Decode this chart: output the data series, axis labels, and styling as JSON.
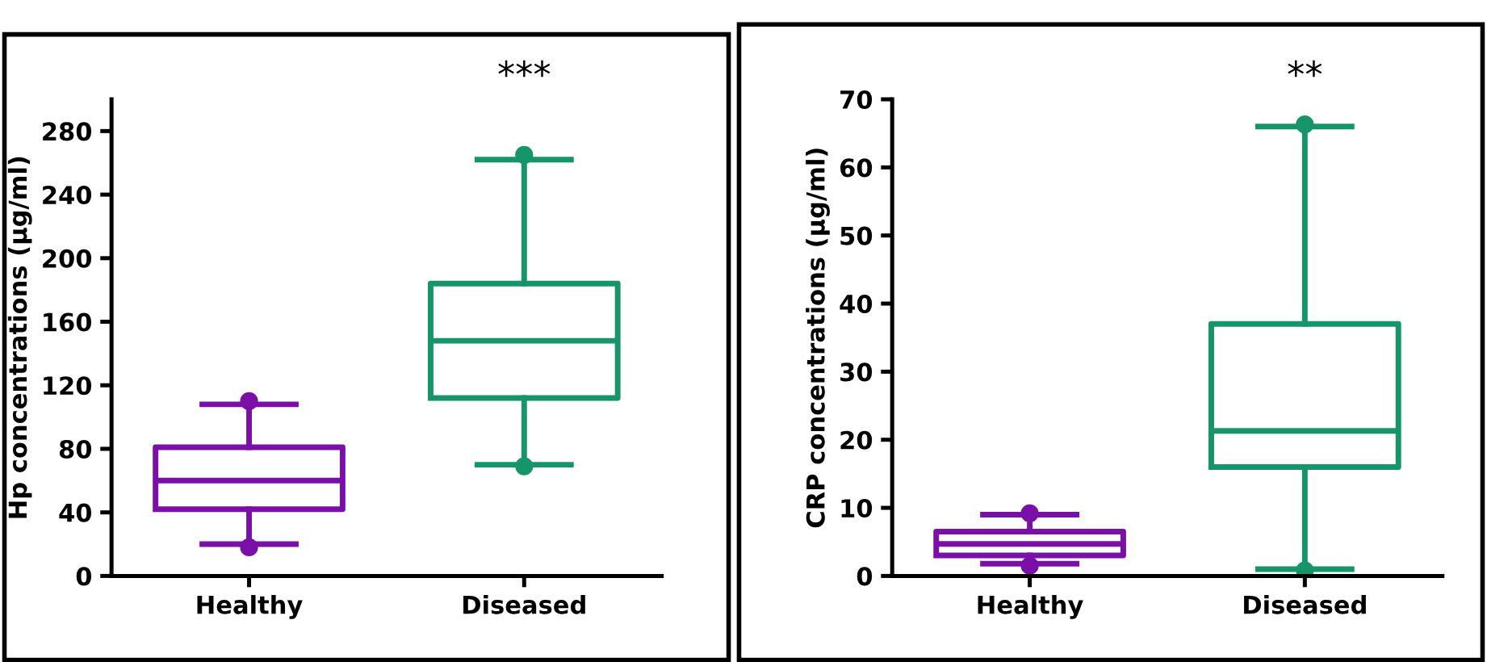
{
  "chart_data": [
    {
      "type": "box",
      "ylabel": "Hp concentrations (µg/ml)",
      "categories": [
        "Healthy",
        "Diseased"
      ],
      "colors": [
        "#7a10a8",
        "#16956a"
      ],
      "marker": "circle",
      "ylim": [
        0,
        300
      ],
      "yticks": [
        0,
        40,
        80,
        120,
        160,
        200,
        240,
        280
      ],
      "grid": false,
      "annotations": [
        "***"
      ],
      "boxes": [
        {
          "low": 20,
          "q1": 42,
          "median": 60,
          "q3": 81,
          "high": 108,
          "outliers": [
            18,
            110
          ]
        },
        {
          "low": 70,
          "q1": 112,
          "median": 148,
          "q3": 184,
          "high": 262,
          "outliers": [
            69,
            265
          ]
        }
      ]
    },
    {
      "type": "box",
      "ylabel": "CRP concentrations (µg/ml)",
      "categories": [
        "Healthy",
        "Diseased"
      ],
      "colors": [
        "#7a10a8",
        "#16956a"
      ],
      "marker": "circle",
      "ylim": [
        0,
        70
      ],
      "yticks": [
        0,
        10,
        20,
        30,
        40,
        50,
        60,
        70
      ],
      "grid": false,
      "annotations": [
        "**"
      ],
      "boxes": [
        {
          "low": 1.8,
          "q1": 3,
          "median": 4.7,
          "q3": 6.5,
          "high": 9,
          "outliers": [
            1.5,
            9.2
          ]
        },
        {
          "low": 1,
          "q1": 16,
          "median": 21.3,
          "q3": 37,
          "high": 66,
          "outliers": [
            0.8,
            66.3
          ]
        }
      ]
    }
  ]
}
